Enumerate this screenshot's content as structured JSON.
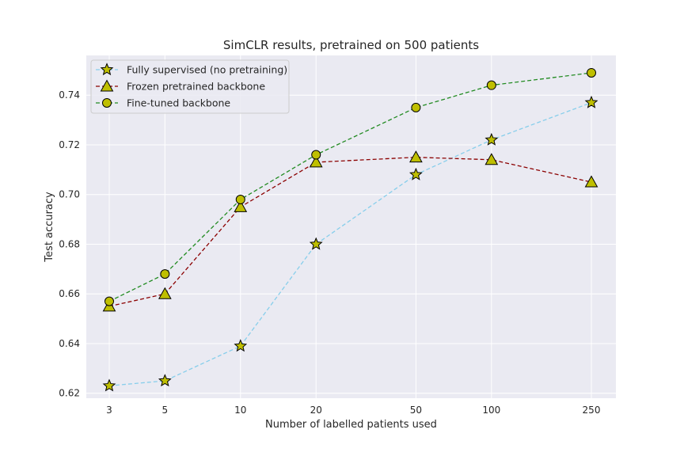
{
  "chart_data": {
    "type": "line",
    "title": "SimCLR results, pretrained on 500 patients",
    "xlabel": "Number of labelled patients used",
    "ylabel": "Test accuracy",
    "x_scale": "log",
    "x": [
      3,
      5,
      10,
      20,
      50,
      100,
      250
    ],
    "x_tick_labels": [
      "3",
      "5",
      "10",
      "20",
      "50",
      "100",
      "250"
    ],
    "y_ticks": [
      0.62,
      0.64,
      0.66,
      0.68,
      0.7,
      0.72,
      0.74
    ],
    "y_tick_labels": [
      "0.62",
      "0.64",
      "0.66",
      "0.68",
      "0.70",
      "0.72",
      "0.74"
    ],
    "ylim": [
      0.618,
      0.756
    ],
    "grid": true,
    "legend_position": "top-left",
    "background_color": "#eaeaf2",
    "series": [
      {
        "name": "Fully supervised (no pretraining)",
        "marker": "star",
        "line_color": "#87ceeb",
        "marker_color": "#bfbf00",
        "values": [
          0.623,
          0.625,
          0.639,
          0.68,
          0.708,
          0.722,
          0.737
        ]
      },
      {
        "name": "Frozen pretrained backbone",
        "marker": "triangle",
        "line_color": "#8b0000",
        "marker_color": "#bfbf00",
        "values": [
          0.655,
          0.66,
          0.695,
          0.713,
          0.715,
          0.714,
          0.705
        ]
      },
      {
        "name": "Fine-tuned backbone",
        "marker": "circle",
        "line_color": "#228b22",
        "marker_color": "#bfbf00",
        "values": [
          0.657,
          0.668,
          0.698,
          0.716,
          0.735,
          0.744,
          0.749
        ]
      }
    ]
  }
}
